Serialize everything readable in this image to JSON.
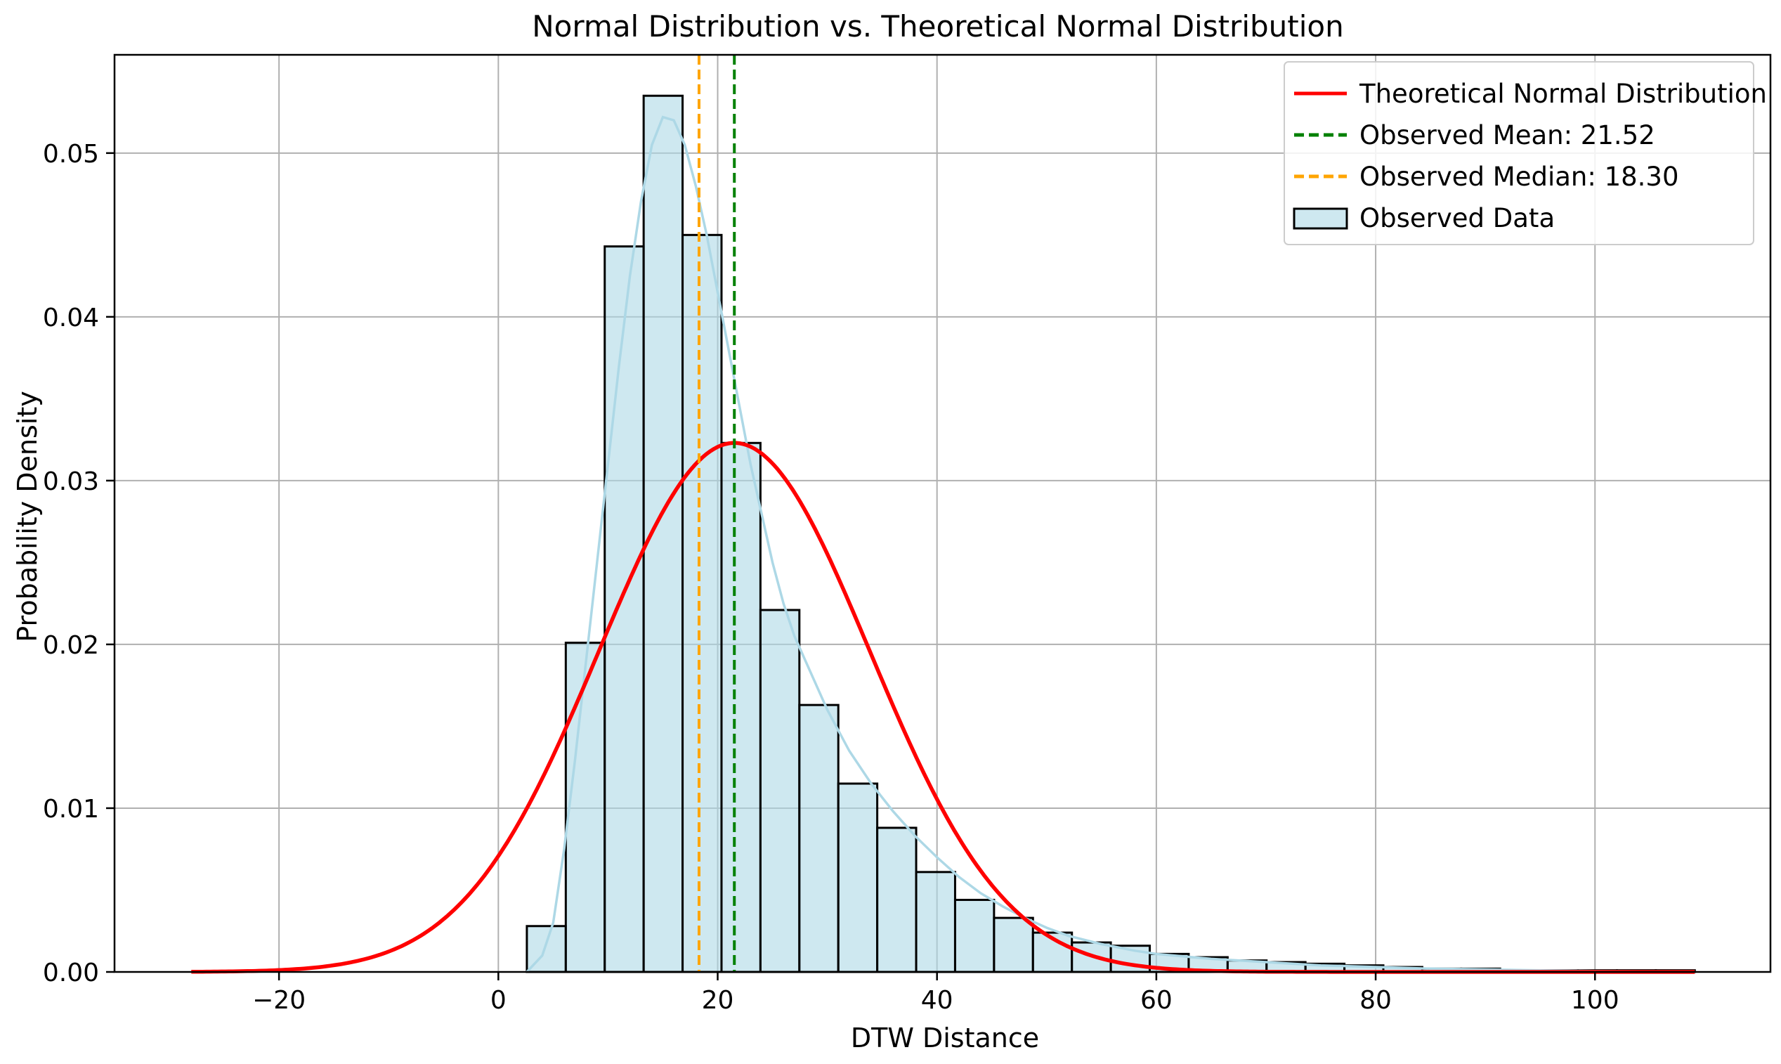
{
  "chart_data": {
    "type": "histogram",
    "title": "Normal Distribution vs. Theoretical Normal Distribution",
    "xlabel": "DTW Distance",
    "ylabel": "Probability Density",
    "xlim": [
      -35,
      116
    ],
    "ylim": [
      0,
      0.056
    ],
    "xticks": [
      -20,
      0,
      20,
      40,
      60,
      80,
      100
    ],
    "yticks": [
      0.0,
      0.01,
      0.02,
      0.03,
      0.04,
      0.05
    ],
    "xtick_labels": [
      "−20",
      "0",
      "20",
      "40",
      "60",
      "80",
      "100"
    ],
    "ytick_labels": [
      "0.00",
      "0.01",
      "0.02",
      "0.03",
      "0.04",
      "0.05"
    ],
    "grid": true,
    "legend_position": "top-right",
    "histogram": {
      "name": "Observed Data",
      "bin_edges": [
        2.6,
        6.15,
        9.7,
        13.25,
        16.8,
        20.35,
        23.9,
        27.45,
        31.0,
        34.55,
        38.1,
        41.65,
        45.2,
        48.75,
        52.3,
        55.85,
        59.4,
        62.95,
        66.5,
        70.05,
        73.6,
        77.15,
        80.7,
        84.25,
        87.8,
        91.35,
        94.9,
        98.45,
        102.0,
        105.55,
        109.1
      ],
      "values": [
        0.0028,
        0.0201,
        0.0443,
        0.0535,
        0.045,
        0.0323,
        0.0221,
        0.0163,
        0.0115,
        0.0088,
        0.0061,
        0.0044,
        0.0033,
        0.0024,
        0.0018,
        0.0016,
        0.0011,
        0.0009,
        0.0007,
        0.0006,
        0.0005,
        0.0004,
        0.0003,
        0.0002,
        0.0002,
        0.0001,
        0.0001,
        0.0001,
        0.0001,
        0.0001
      ],
      "fill_color": "#add8e6",
      "edge_color": "#000000"
    },
    "kde": {
      "x": [
        2.6,
        4,
        5,
        6,
        7,
        8,
        9,
        10,
        11,
        12,
        13,
        14,
        15,
        16,
        17,
        18,
        19,
        20,
        21,
        22,
        23,
        24,
        25,
        26,
        27,
        28,
        30,
        32,
        34,
        36,
        38,
        40,
        42,
        44,
        46,
        48,
        50,
        52,
        55,
        58,
        60,
        65,
        70,
        75,
        80,
        85,
        90,
        95,
        100,
        105,
        109.1
      ],
      "y": [
        0.0,
        0.001,
        0.003,
        0.0075,
        0.013,
        0.019,
        0.025,
        0.031,
        0.037,
        0.0425,
        0.047,
        0.0505,
        0.0522,
        0.052,
        0.0505,
        0.048,
        0.045,
        0.0415,
        0.038,
        0.0345,
        0.031,
        0.028,
        0.025,
        0.0225,
        0.0205,
        0.019,
        0.016,
        0.0135,
        0.0115,
        0.0098,
        0.0083,
        0.007,
        0.0058,
        0.0048,
        0.004,
        0.0033,
        0.0027,
        0.0022,
        0.0017,
        0.0013,
        0.0011,
        0.0008,
        0.0006,
        0.0004,
        0.0003,
        0.0002,
        0.00015,
        0.0001,
        5e-05,
        3e-05,
        2e-05
      ],
      "color": "#add8e6"
    },
    "normal_curve": {
      "name": "Theoretical Normal Distribution",
      "mean": 21.52,
      "std": 12.35,
      "x_start": -28,
      "x_end": 109.1,
      "color": "#ff0000"
    },
    "vlines": [
      {
        "name": "Observed Mean: 21.52",
        "x": 21.52,
        "color": "#008000",
        "style": "dashed"
      },
      {
        "name": "Observed Median: 18.30",
        "x": 18.3,
        "color": "#ffa500",
        "style": "dashed"
      }
    ],
    "legend": [
      {
        "label": "Theoretical Normal Distribution",
        "kind": "line",
        "color": "#ff0000"
      },
      {
        "label": "Observed Mean: 21.52",
        "kind": "dashed",
        "color": "#008000"
      },
      {
        "label": "Observed Median: 18.30",
        "kind": "dashed",
        "color": "#ffa500"
      },
      {
        "label": "Observed Data",
        "kind": "patch",
        "color": "#add8e6"
      }
    ]
  }
}
